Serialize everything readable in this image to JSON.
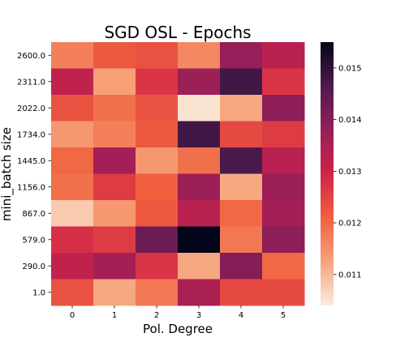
{
  "chart_data": {
    "type": "heatmap",
    "title": "SGD OSL - Epochs",
    "xlabel": "Pol. Degree",
    "ylabel": "mini_batch size",
    "x_categories": [
      "0",
      "1",
      "2",
      "3",
      "4",
      "5"
    ],
    "y_categories": [
      "2600.0",
      "2311.0",
      "2022.0",
      "1734.0",
      "1445.0",
      "1156.0",
      "867.0",
      "579.0",
      "290.0",
      "1.0"
    ],
    "values": [
      [
        0.0117,
        0.0122,
        0.0123,
        0.0116,
        0.0138,
        0.0133
      ],
      [
        0.0132,
        0.0113,
        0.0127,
        0.0137,
        0.0148,
        0.0127
      ],
      [
        0.0123,
        0.0119,
        0.0123,
        0.0105,
        0.0112,
        0.0139
      ],
      [
        0.0114,
        0.0117,
        0.0122,
        0.0148,
        0.0124,
        0.0126
      ],
      [
        0.012,
        0.0136,
        0.0114,
        0.0119,
        0.0147,
        0.0133
      ],
      [
        0.0119,
        0.0126,
        0.0121,
        0.0137,
        0.0112,
        0.0137
      ],
      [
        0.0108,
        0.0114,
        0.0122,
        0.0133,
        0.012,
        0.0136
      ],
      [
        0.0128,
        0.0126,
        0.0143,
        0.0155,
        0.0118,
        0.0139
      ],
      [
        0.0132,
        0.0136,
        0.0127,
        0.0112,
        0.014,
        0.012
      ],
      [
        0.0123,
        0.0112,
        0.0118,
        0.0135,
        0.0124,
        0.0124
      ]
    ],
    "colorbar": {
      "min": 0.0104,
      "max": 0.0155,
      "ticks": [
        "0.011",
        "0.012",
        "0.013",
        "0.014",
        "0.015"
      ],
      "colors": [
        "#faebdd",
        "#f6a47b",
        "#f0603e",
        "#d12349",
        "#961e59",
        "#4e1b50",
        "#03051a"
      ]
    },
    "grid": false,
    "legend": "colorbar-right"
  }
}
